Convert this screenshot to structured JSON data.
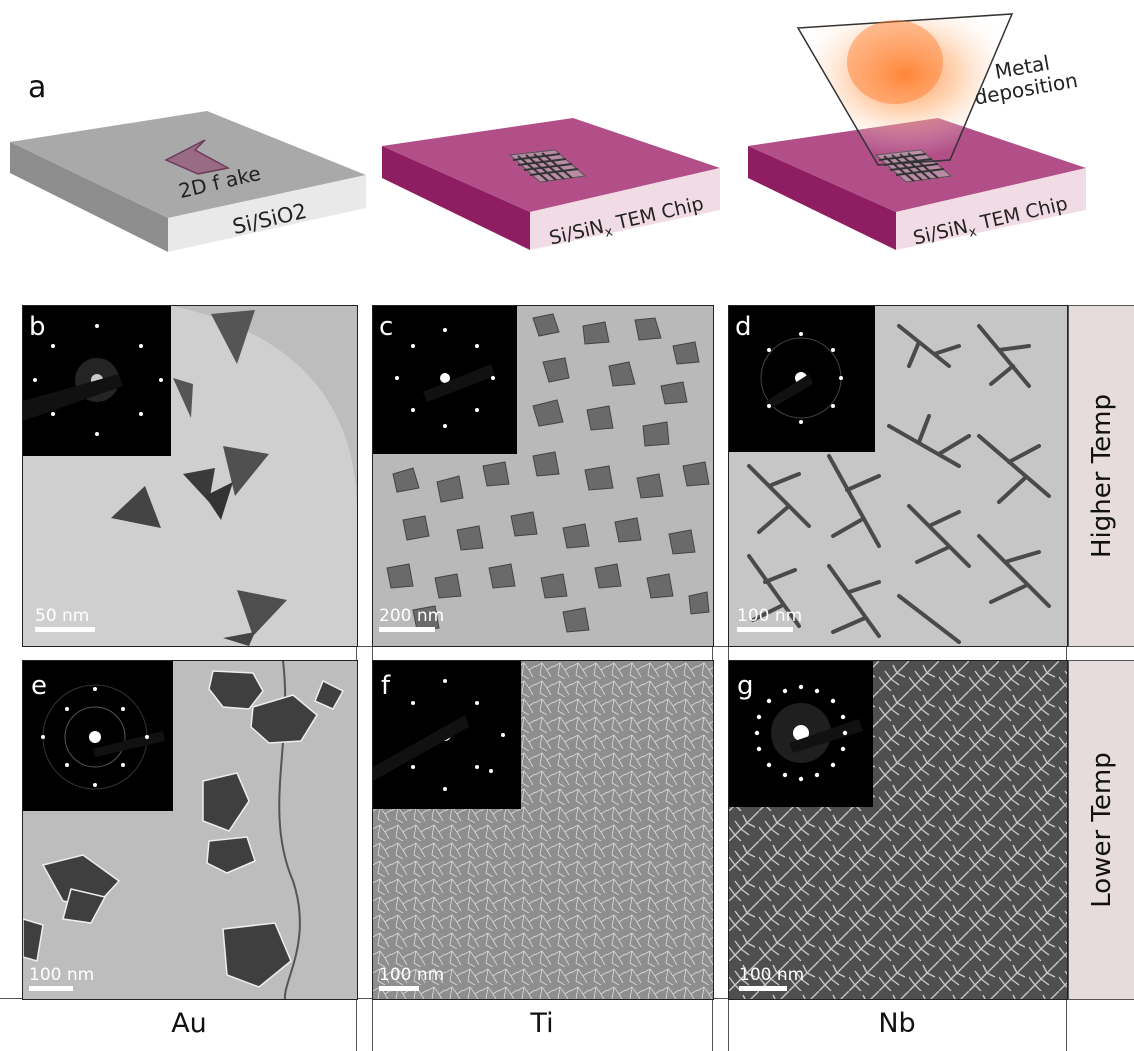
{
  "schematic": {
    "panel_label": "a",
    "chip1_label": "Si/SiO2",
    "flake_label": "2D f ake",
    "chip2_label_prefix": "Si/SiN",
    "chip2_label_sub": "x",
    "chip2_label_suffix": " TEM Chip",
    "chip3_label_prefix": "Si/SiN",
    "chip3_label_sub": "x",
    "chip3_label_suffix": " TEM Chip",
    "deposition_line1": "Metal",
    "deposition_line2": "deposition"
  },
  "panels": [
    {
      "label": "b",
      "scale": "50 nm"
    },
    {
      "label": "c",
      "scale": "200 nm"
    },
    {
      "label": "d",
      "scale": "100 nm"
    },
    {
      "label": "e",
      "scale": "100 nm"
    },
    {
      "label": "f",
      "scale": "100 nm"
    },
    {
      "label": "g",
      "scale": "100 nm"
    }
  ],
  "rows": {
    "top": "Higher Temp",
    "bottom": "Lower Temp"
  },
  "columns": [
    "Au",
    "Ti",
    "Nb"
  ],
  "colors": {
    "chip_gray": "#a6a6a6",
    "chip_pink": "#b04e86",
    "chip_pink_dark": "#8e1d61",
    "row_label_bg": "#e6dcdc"
  }
}
